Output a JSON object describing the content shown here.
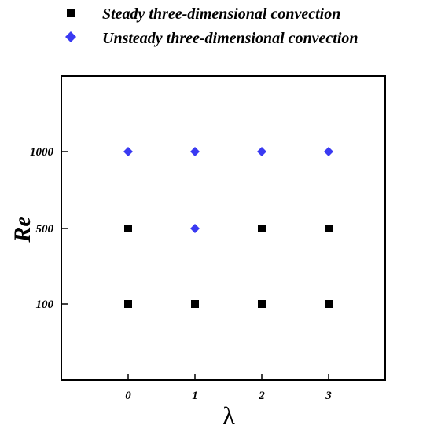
{
  "chart_data": {
    "type": "scatter",
    "title": "",
    "xlabel": "λ",
    "ylabel": "Re",
    "x_ticks": [
      "0",
      "1",
      "2",
      "3"
    ],
    "y_ticks": [
      "100",
      "500",
      "1000"
    ],
    "legend_position": "top",
    "grid": false,
    "series": [
      {
        "name": "Steady three-dimensional convection",
        "marker": "square",
        "color": "#000000",
        "points": [
          {
            "x": 0,
            "y": 100
          },
          {
            "x": 1,
            "y": 100
          },
          {
            "x": 2,
            "y": 100
          },
          {
            "x": 3,
            "y": 100
          },
          {
            "x": 0,
            "y": 500
          },
          {
            "x": 2,
            "y": 500
          },
          {
            "x": 3,
            "y": 500
          }
        ]
      },
      {
        "name": "Unsteady three-dimensional convection",
        "marker": "diamond",
        "color": "#3a3af2",
        "points": [
          {
            "x": 1,
            "y": 500
          },
          {
            "x": 0,
            "y": 1000
          },
          {
            "x": 1,
            "y": 1000
          },
          {
            "x": 2,
            "y": 1000
          },
          {
            "x": 3,
            "y": 1000
          }
        ]
      }
    ]
  }
}
